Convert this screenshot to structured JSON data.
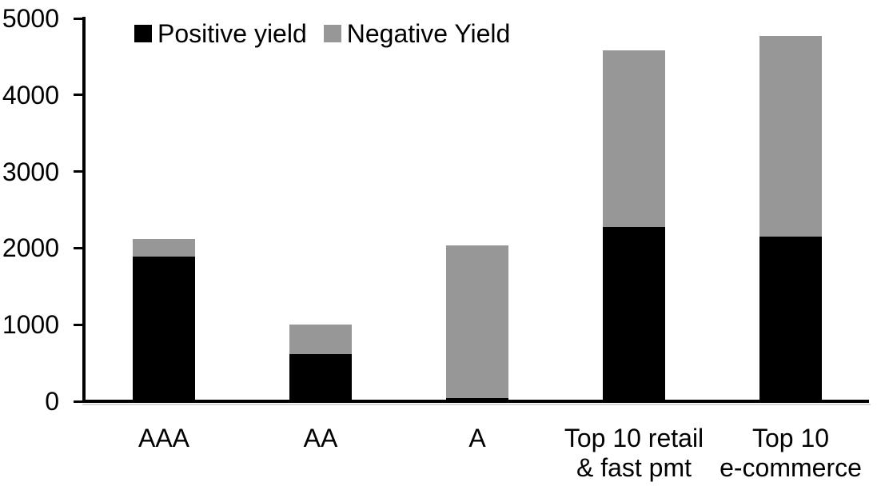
{
  "chart_data": {
    "type": "bar",
    "stacked": true,
    "title": "",
    "xlabel": "",
    "ylabel": "",
    "categories": [
      "AAA",
      "AA",
      "A",
      "Top 10 retail\n& fast pmt",
      "Top 10\ne-commerce"
    ],
    "series": [
      {
        "name": "Positive yield",
        "color": "#000000",
        "values": [
          1890,
          620,
          40,
          2280,
          2150
        ]
      },
      {
        "name": "Negative Yield",
        "color": "#979797",
        "values": [
          230,
          380,
          2000,
          2300,
          2620
        ]
      }
    ],
    "totals": [
      2120,
      1000,
      2040,
      4580,
      4770
    ],
    "ylim": [
      0,
      5000
    ],
    "yticks": [
      0,
      1000,
      2000,
      3000,
      4000,
      5000
    ],
    "grid": "off",
    "legend_position": "top"
  },
  "colors": {
    "background": "#ffffff",
    "axis": "#000000",
    "positive_series": "#000000",
    "negative_series": "#979797"
  }
}
